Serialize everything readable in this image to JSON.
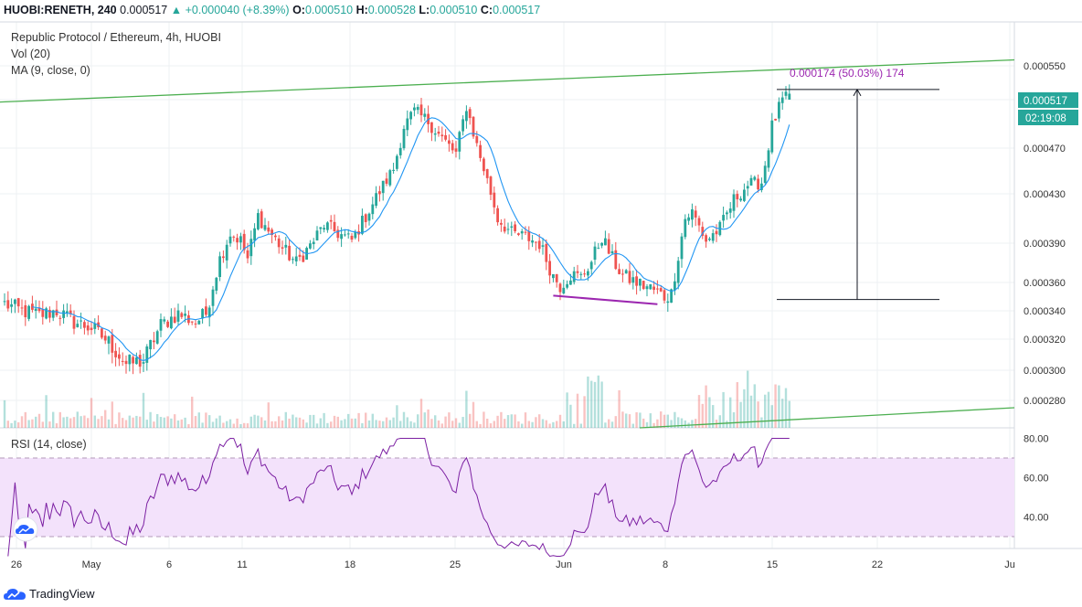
{
  "header": {
    "symbol": "HUOBI:RENETH, 240",
    "last": "0.000517",
    "change": "+0.000040 (+8.39%)",
    "o_label": "O:",
    "o": "0.000510",
    "h_label": "H:",
    "h": "0.000528",
    "l_label": "L:",
    "l": "0.000510",
    "c_label": "C:",
    "c": "0.000517"
  },
  "legend": {
    "title": "Republic Protocol / Ethereum, 4h, HUOBI",
    "vol": "Vol (20)",
    "ma": "MA (9, close, 0)",
    "rsi": "RSI (14, close)"
  },
  "badges": {
    "price": "0.000517",
    "countdown": "02:19:08"
  },
  "measure": {
    "label": "0.000174 (50.03%) 174"
  },
  "footer": {
    "brand": "TradingView"
  },
  "colors": {
    "up": "#26a69a",
    "down": "#ef5350",
    "ma": "#2196f3",
    "trend": "#4caf50",
    "support": "#9c27b0",
    "rsi": "#7b1fa2",
    "rsi_band": "#f3e2fb",
    "badge_price": "#26a69a",
    "badge_time": "#26a69a"
  },
  "chart_data": {
    "type": "candlestick",
    "price_axis": {
      "ticks": [
        "0.000550",
        "0.000510",
        "0.000470",
        "0.000430",
        "0.000390",
        "0.000360",
        "0.000340",
        "0.000320",
        "0.000300",
        "0.000280"
      ]
    },
    "rsi_axis": {
      "ticks": [
        "80.00",
        "60.00",
        "40.00"
      ],
      "band": [
        30,
        70
      ]
    },
    "x_ticks": [
      "26",
      "May",
      "6",
      "11",
      "18",
      "25",
      "Jun",
      "8",
      "15",
      "22",
      "Ju"
    ],
    "anchors": [
      [
        0,
        0.000345
      ],
      [
        5,
        0.00034
      ],
      [
        10,
        0.000337
      ],
      [
        15,
        0.00034
      ],
      [
        20,
        0.000332
      ],
      [
        25,
        0.000328
      ],
      [
        30,
        0.000318
      ],
      [
        35,
        0.000304
      ],
      [
        40,
        0.000306
      ],
      [
        45,
        0.00033
      ],
      [
        50,
        0.000338
      ],
      [
        55,
        0.000332
      ],
      [
        58,
        0.000338
      ],
      [
        62,
        0.000378
      ],
      [
        65,
        0.000398
      ],
      [
        68,
        0.000392
      ],
      [
        70,
        0.000378
      ],
      [
        73,
        0.000412
      ],
      [
        76,
        0.0004
      ],
      [
        80,
        0.000386
      ],
      [
        84,
        0.000375
      ],
      [
        88,
        0.000388
      ],
      [
        92,
        0.000405
      ],
      [
        96,
        0.000398
      ],
      [
        100,
        0.000392
      ],
      [
        104,
        0.000412
      ],
      [
        108,
        0.000432
      ],
      [
        112,
        0.000452
      ],
      [
        115,
        0.000488
      ],
      [
        118,
        0.0005
      ],
      [
        122,
        0.000492
      ],
      [
        126,
        0.000478
      ],
      [
        130,
        0.000465
      ],
      [
        133,
        0.000505
      ],
      [
        136,
        0.000472
      ],
      [
        138,
        0.000452
      ],
      [
        142,
        0.00041
      ],
      [
        146,
        0.000398
      ],
      [
        150,
        0.000395
      ],
      [
        154,
        0.00039
      ],
      [
        158,
        0.000365
      ],
      [
        160,
        0.000358
      ],
      [
        163,
        0.000366
      ],
      [
        166,
        0.000364
      ],
      [
        169,
        0.000376
      ],
      [
        172,
        0.000395
      ],
      [
        175,
        0.000378
      ],
      [
        178,
        0.000365
      ],
      [
        182,
        0.00036
      ],
      [
        186,
        0.000356
      ],
      [
        190,
        0.00035
      ],
      [
        192,
        0.000352
      ],
      [
        196,
        0.00041
      ],
      [
        198,
        0.000415
      ],
      [
        202,
        0.000392
      ],
      [
        206,
        0.000402
      ],
      [
        210,
        0.000425
      ],
      [
        214,
        0.000438
      ],
      [
        218,
        0.00044
      ],
      [
        221,
        0.000488
      ],
      [
        224,
        0.00051
      ],
      [
        226,
        0.000517
      ]
    ]
  }
}
